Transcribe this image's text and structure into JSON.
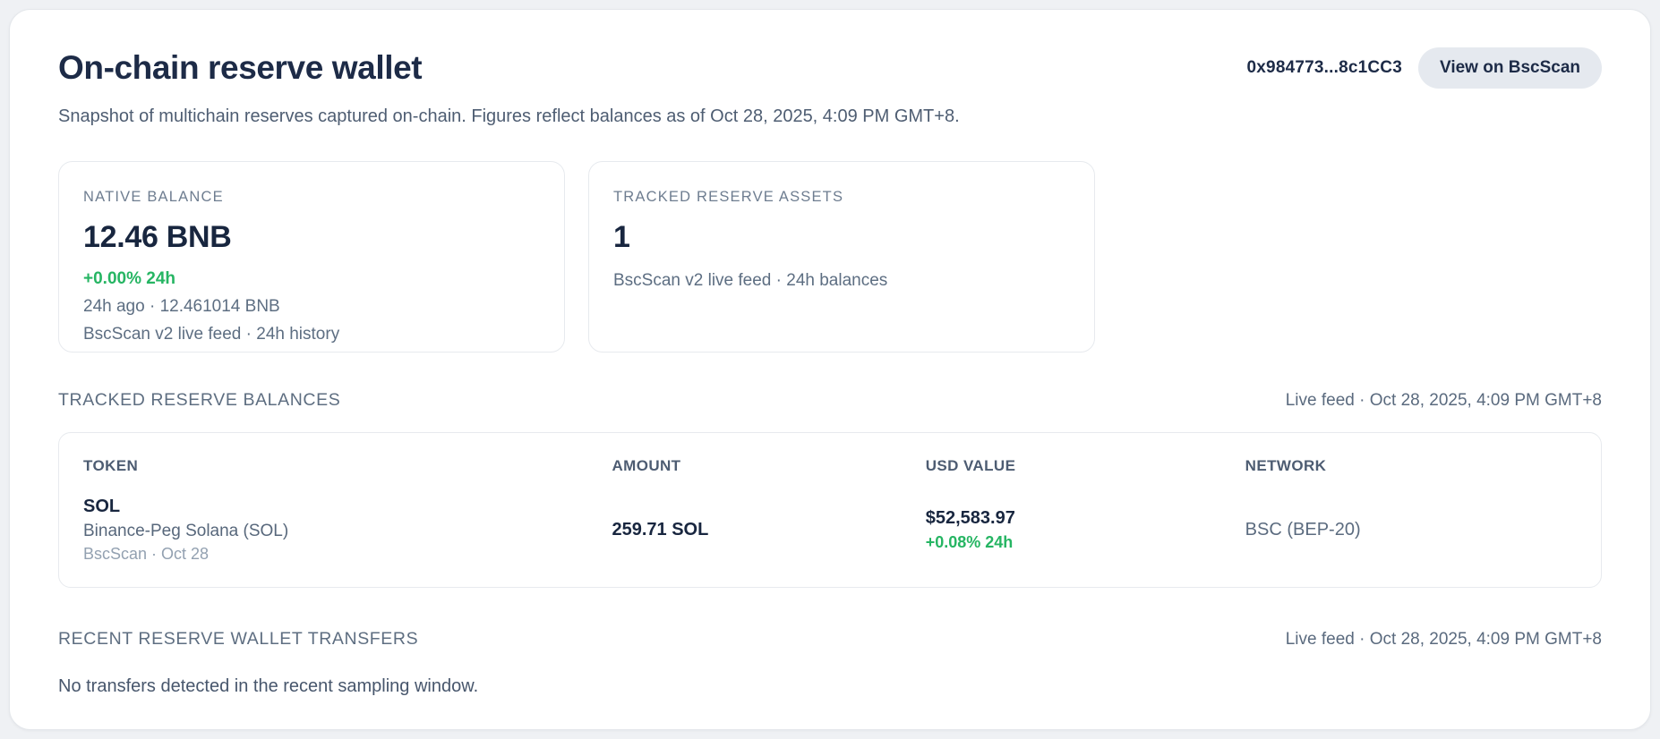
{
  "header": {
    "title": "On-chain reserve wallet",
    "subtitle": "Snapshot of multichain reserves captured on-chain. Figures reflect balances as of Oct 28, 2025, 4:09 PM GMT+8.",
    "wallet_address": "0x984773...8c1CC3",
    "view_button_label": "View on BscScan"
  },
  "stat_cards": [
    {
      "label": "NATIVE BALANCE",
      "value": "12.46 BNB",
      "delta": "+0.00% 24h",
      "meta1": "24h ago · 12.461014 BNB",
      "meta2": "BscScan v2 live feed · 24h history"
    },
    {
      "label": "TRACKED RESERVE ASSETS",
      "value": "1",
      "meta1": "BscScan v2 live feed · 24h balances"
    }
  ],
  "balances_section": {
    "heading": "TRACKED RESERVE BALANCES",
    "feed_status": "Live feed · Oct 28, 2025, 4:09 PM GMT+8",
    "table": {
      "columns": [
        "TOKEN",
        "AMOUNT",
        "USD VALUE",
        "NETWORK"
      ],
      "rows": [
        {
          "token_symbol": "SOL",
          "token_name": "Binance-Peg Solana (SOL)",
          "token_source": "BscScan · Oct 28",
          "amount": "259.71 SOL",
          "usd_value": "$52,583.97",
          "usd_delta": "+0.08% 24h",
          "network": "BSC (BEP-20)"
        }
      ]
    }
  },
  "transfers_section": {
    "heading": "RECENT RESERVE WALLET TRANSFERS",
    "feed_status": "Live feed · Oct 28, 2025, 4:09 PM GMT+8",
    "empty_message": "No transfers detected in the recent sampling window."
  },
  "colors": {
    "accent_navy": "#1d2b47",
    "positive_green": "#26b563",
    "muted_gray": "#5d6e82",
    "faint_gray": "#93a1b1",
    "button_background": "#e5e9ef",
    "panel_background": "#ffffff",
    "page_background": "#eff1f4"
  }
}
